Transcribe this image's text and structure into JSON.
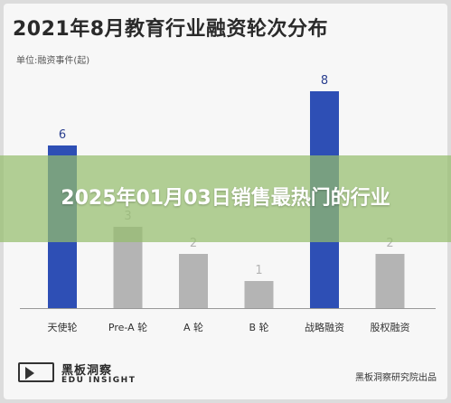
{
  "chart_data": {
    "type": "bar",
    "title": "2021年8月教育行业融资轮次分布",
    "ylabel": "单位:融资事件(起)",
    "xlabel": "",
    "categories": [
      "天使轮",
      "Pre-A 轮",
      "A 轮",
      "B 轮",
      "战略融资",
      "股权融资"
    ],
    "values": [
      6,
      3,
      2,
      1,
      8,
      2
    ],
    "value_labels": [
      "6",
      "3",
      "2",
      "1",
      "8",
      "2"
    ],
    "ylim": [
      0,
      8
    ],
    "grid": false,
    "colors": {
      "highlight": "#2e4fb5",
      "normal": "#b4b4b4",
      "label_highlight": "#2a3f8f",
      "label_normal": "#b4b4b4"
    },
    "highlighted": [
      0,
      4
    ]
  },
  "logo": {
    "name_cn": "黑板洞察",
    "name_en": "EDU INSIGHT"
  },
  "source": "黑板洞察研究院出品",
  "overlay": {
    "text": "2025年01月03日销售最热门的行业"
  }
}
